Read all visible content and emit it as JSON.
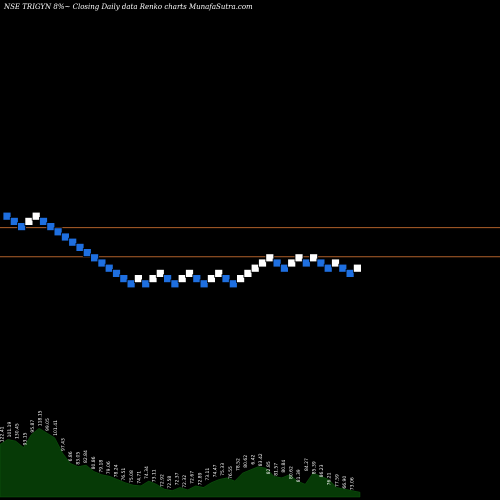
{
  "chart_data": {
    "type": "renko",
    "title": "NSE TRIGYN  8%~  Closing Daily data  Renko  charts MunafaSutra.com",
    "colors": {
      "background": "#000000",
      "up_brick": "#ffffff",
      "down_brick": "#1e6fe0",
      "brick_edge": "#000000",
      "reference_line": "#b0602a",
      "volume_fill": "#063a06",
      "volume_label": "#ffffff",
      "title": "#ffffff"
    },
    "bricks": [
      {
        "d": "down",
        "l": 1
      },
      {
        "d": "down",
        "l": 2
      },
      {
        "d": "down",
        "l": 3
      },
      {
        "d": "up",
        "l": 2
      },
      {
        "d": "up",
        "l": 1
      },
      {
        "d": "down",
        "l": 2
      },
      {
        "d": "down",
        "l": 3
      },
      {
        "d": "down",
        "l": 4
      },
      {
        "d": "down",
        "l": 5
      },
      {
        "d": "down",
        "l": 6
      },
      {
        "d": "down",
        "l": 7
      },
      {
        "d": "down",
        "l": 8
      },
      {
        "d": "down",
        "l": 9
      },
      {
        "d": "down",
        "l": 10
      },
      {
        "d": "down",
        "l": 11
      },
      {
        "d": "down",
        "l": 12
      },
      {
        "d": "down",
        "l": 13
      },
      {
        "d": "down",
        "l": 14
      },
      {
        "d": "up",
        "l": 13
      },
      {
        "d": "down",
        "l": 14
      },
      {
        "d": "up",
        "l": 13
      },
      {
        "d": "up",
        "l": 12
      },
      {
        "d": "down",
        "l": 13
      },
      {
        "d": "down",
        "l": 14
      },
      {
        "d": "up",
        "l": 13
      },
      {
        "d": "up",
        "l": 12
      },
      {
        "d": "down",
        "l": 13
      },
      {
        "d": "down",
        "l": 14
      },
      {
        "d": "up",
        "l": 13
      },
      {
        "d": "up",
        "l": 12
      },
      {
        "d": "down",
        "l": 13
      },
      {
        "d": "down",
        "l": 14
      },
      {
        "d": "up",
        "l": 13
      },
      {
        "d": "up",
        "l": 12
      },
      {
        "d": "up",
        "l": 11
      },
      {
        "d": "up",
        "l": 10
      },
      {
        "d": "up",
        "l": 9
      },
      {
        "d": "down",
        "l": 10
      },
      {
        "d": "down",
        "l": 11
      },
      {
        "d": "up",
        "l": 10
      },
      {
        "d": "up",
        "l": 9
      },
      {
        "d": "down",
        "l": 10
      },
      {
        "d": "up",
        "l": 9
      },
      {
        "d": "down",
        "l": 10
      },
      {
        "d": "down",
        "l": 11
      },
      {
        "d": "up",
        "l": 10
      },
      {
        "d": "down",
        "l": 11
      },
      {
        "d": "down",
        "l": 12
      },
      {
        "d": "up",
        "l": 11
      }
    ],
    "reference_lines": [
      {
        "level": 3.2
      },
      {
        "level": 8.8
      }
    ],
    "volume": [
      0.66,
      0.72,
      0.7,
      0.62,
      0.78,
      0.86,
      0.8,
      0.74,
      0.55,
      0.42,
      0.38,
      0.4,
      0.32,
      0.28,
      0.26,
      0.22,
      0.18,
      0.15,
      0.14,
      0.2,
      0.16,
      0.1,
      0.08,
      0.12,
      0.09,
      0.14,
      0.12,
      0.18,
      0.22,
      0.24,
      0.2,
      0.3,
      0.34,
      0.38,
      0.36,
      0.26,
      0.24,
      0.28,
      0.2,
      0.16,
      0.3,
      0.26,
      0.22,
      0.12,
      0.1,
      0.08,
      0.06
    ],
    "volume_labels": [
      {
        "t": "122.41",
        "v": 0.66
      },
      {
        "t": "101.19",
        "v": 0.72
      },
      {
        "t": "130.45",
        "v": 0.7
      },
      {
        "t": "93.15",
        "v": 0.62
      },
      {
        "t": "95.87",
        "v": 0.78
      },
      {
        "t": "118.15",
        "v": 0.86
      },
      {
        "t": "99.05",
        "v": 0.8
      },
      {
        "t": "101.41",
        "v": 0.74
      },
      {
        "t": "97.43",
        "v": 0.55
      },
      {
        "t": "6.86",
        "v": 0.42
      },
      {
        "t": "83.05",
        "v": 0.38
      },
      {
        "t": "82.84",
        "v": 0.4
      },
      {
        "t": "80.86",
        "v": 0.32
      },
      {
        "t": "79.18",
        "v": 0.28
      },
      {
        "t": "79.06",
        "v": 0.26
      },
      {
        "t": "78.24",
        "v": 0.22
      },
      {
        "t": "76.51",
        "v": 0.18
      },
      {
        "t": "75.08",
        "v": 0.15
      },
      {
        "t": "74.71",
        "v": 0.14
      },
      {
        "t": "74.34",
        "v": 0.2
      },
      {
        "t": "73.11",
        "v": 0.16
      },
      {
        "t": "72.92",
        "v": 0.1
      },
      {
        "t": "72.58",
        "v": 0.08
      },
      {
        "t": "72.37",
        "v": 0.12
      },
      {
        "t": "72.32",
        "v": 0.09
      },
      {
        "t": "72.67",
        "v": 0.14
      },
      {
        "t": "72.89",
        "v": 0.12
      },
      {
        "t": "73.11",
        "v": 0.18
      },
      {
        "t": "74.47",
        "v": 0.22
      },
      {
        "t": "75.33",
        "v": 0.24
      },
      {
        "t": "76.55",
        "v": 0.2
      },
      {
        "t": "78.52",
        "v": 0.3
      },
      {
        "t": "80.62",
        "v": 0.34
      },
      {
        "t": "6.42",
        "v": 0.38
      },
      {
        "t": "83.42",
        "v": 0.36
      },
      {
        "t": "82.85",
        "v": 0.26
      },
      {
        "t": "81.57",
        "v": 0.24
      },
      {
        "t": "80.84",
        "v": 0.28
      },
      {
        "t": "80.62",
        "v": 0.2
      },
      {
        "t": "81.39",
        "v": 0.16
      },
      {
        "t": "84.27",
        "v": 0.3
      },
      {
        "t": "85.39",
        "v": 0.26
      },
      {
        "t": "86.23",
        "v": 0.22
      },
      {
        "t": "76.21",
        "v": 0.12
      },
      {
        "t": "77.59",
        "v": 0.1
      },
      {
        "t": "66.90",
        "v": 0.08
      },
      {
        "t": "73.06",
        "v": 0.06
      }
    ]
  }
}
